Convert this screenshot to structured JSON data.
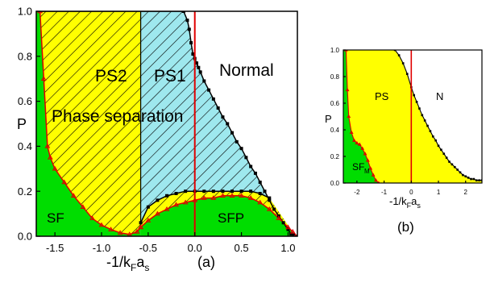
{
  "colors": {
    "green": "#00dd00",
    "yellow": "#ffff00",
    "cyan": "#9ee8ee",
    "red_line": "#e00000",
    "boundary": "#000000"
  },
  "chart_data": [
    {
      "panel": "a",
      "panel_label": "(a)",
      "type": "area",
      "xlabel": "-1/k_F a_s",
      "xlabel_main": "-1/k",
      "xlabel_sub_F": "F",
      "xlabel_mid": "a",
      "xlabel_sub_s": "s",
      "ylabel": "P",
      "xlim": [
        -1.7,
        1.1
      ],
      "ylim": [
        0.0,
        1.0
      ],
      "xticks": [
        "-1.5",
        "-1.0",
        "-0.5",
        "0.0",
        "0.5",
        "1.0"
      ],
      "xtick_values": [
        -1.5,
        -1.0,
        -0.5,
        0.0,
        0.5,
        1.0
      ],
      "yticks": [
        "0.0",
        "0.2",
        "0.4",
        "0.6",
        "0.8",
        "1.0"
      ],
      "ytick_values": [
        0.0,
        0.2,
        0.4,
        0.6,
        0.8,
        1.0
      ],
      "vertical_line_x": 0.0,
      "regions": [
        {
          "label": "PS2",
          "x": -1.25,
          "y": 0.73
        },
        {
          "label": "PS1",
          "x": -0.33,
          "y": 0.73
        },
        {
          "label": "Normal",
          "x": 0.58,
          "y": 0.75
        },
        {
          "label": "Phase separation",
          "x": -0.78,
          "y": 0.55
        },
        {
          "label": "SF",
          "x": -1.52,
          "y": 0.1
        },
        {
          "label": "SFP",
          "x": 0.45,
          "y": 0.1
        }
      ],
      "series": [
        {
          "role": "normal boundary",
          "x": [
            -0.12,
            -0.08,
            -0.06,
            -0.04,
            -0.02,
            0.0,
            0.02,
            0.04,
            0.06,
            0.1,
            0.15,
            0.2,
            0.25,
            0.3,
            0.35,
            0.4,
            0.45,
            0.5,
            0.55,
            0.6,
            0.65,
            0.7,
            0.75,
            0.8,
            0.85,
            0.9,
            0.95,
            1.0,
            1.03,
            1.06,
            1.08
          ],
          "y": [
            1.0,
            0.96,
            0.92,
            0.86,
            0.81,
            0.79,
            0.77,
            0.75,
            0.73,
            0.69,
            0.65,
            0.61,
            0.57,
            0.53,
            0.5,
            0.46,
            0.42,
            0.39,
            0.35,
            0.31,
            0.28,
            0.24,
            0.2,
            0.16,
            0.12,
            0.09,
            0.06,
            0.03,
            0.01,
            0.005,
            0.0
          ]
        },
        {
          "role": "PS1/PS2 boundary",
          "x": [
            -0.58,
            -0.58
          ],
          "y": [
            0.05,
            1.0
          ]
        },
        {
          "role": "SF boundary",
          "x": [
            -1.66,
            -1.62,
            -1.58,
            -1.55,
            -1.5,
            -1.4,
            -1.3,
            -1.2,
            -1.1,
            -1.0,
            -0.9,
            -0.8,
            -0.7,
            -0.62,
            -0.58
          ],
          "y": [
            1.0,
            0.7,
            0.4,
            0.35,
            0.3,
            0.24,
            0.18,
            0.13,
            0.08,
            0.05,
            0.03,
            0.015,
            0.008,
            0.02,
            0.04
          ]
        },
        {
          "role": "SFP upper boundary",
          "x": [
            -0.58,
            -0.5,
            -0.4,
            -0.3,
            -0.2,
            -0.1,
            0.0,
            0.1,
            0.2,
            0.3,
            0.4,
            0.5,
            0.6,
            0.7,
            0.8
          ],
          "y": [
            0.06,
            0.13,
            0.16,
            0.18,
            0.19,
            0.2,
            0.2,
            0.2,
            0.2,
            0.2,
            0.2,
            0.2,
            0.2,
            0.19,
            0.17
          ]
        },
        {
          "role": "SFP lower boundary",
          "x": [
            -0.58,
            -0.5,
            -0.4,
            -0.3,
            -0.2,
            -0.1,
            0.0,
            0.1,
            0.2,
            0.3,
            0.4,
            0.5,
            0.6,
            0.7,
            0.8,
            0.9,
            1.0,
            1.05,
            1.08
          ],
          "y": [
            0.04,
            0.07,
            0.1,
            0.12,
            0.14,
            0.15,
            0.16,
            0.17,
            0.17,
            0.18,
            0.18,
            0.18,
            0.17,
            0.15,
            0.12,
            0.08,
            0.04,
            0.02,
            0.0
          ]
        }
      ]
    },
    {
      "panel": "b",
      "panel_label": "(b)",
      "type": "area",
      "xlabel": "-1/k_F a_s",
      "xlabel_main": "-1/k",
      "xlabel_sub_F": "F",
      "xlabel_mid": "a",
      "xlabel_sub_s": "s",
      "ylabel": "P",
      "xlim": [
        -2.5,
        2.6
      ],
      "ylim": [
        0.0,
        1.0
      ],
      "xticks": [
        "-2",
        "-1",
        "0",
        "1",
        "2"
      ],
      "xtick_values": [
        -2,
        -1,
        0,
        1,
        2
      ],
      "yticks": [
        "0.0",
        "0.2",
        "0.4",
        "0.6",
        "0.8",
        "1.0"
      ],
      "ytick_values": [
        0.0,
        0.2,
        0.4,
        0.6,
        0.8,
        1.0
      ],
      "vertical_line_x": 0.0,
      "regions": [
        {
          "label": "PS",
          "x": -0.9,
          "y": 0.72
        },
        {
          "label": "N",
          "x": 1.1,
          "y": 0.72
        },
        {
          "label": "SF",
          "x": -2.15,
          "y": 0.18
        },
        {
          "label": "M",
          "x": -1.85,
          "y": 0.13
        }
      ],
      "series": [
        {
          "role": "normal boundary",
          "x": [
            -0.6,
            -0.45,
            -0.3,
            -0.15,
            0.0,
            0.1,
            0.2,
            0.3,
            0.4,
            0.5,
            0.6,
            0.7,
            0.8,
            0.9,
            1.0,
            1.1,
            1.2,
            1.3,
            1.4,
            1.5,
            1.6,
            1.7,
            1.8,
            1.9,
            2.0,
            2.1,
            2.2,
            2.3,
            2.4,
            2.5,
            2.6
          ],
          "y": [
            1.0,
            0.96,
            0.9,
            0.82,
            0.72,
            0.66,
            0.61,
            0.56,
            0.51,
            0.47,
            0.43,
            0.39,
            0.35,
            0.32,
            0.28,
            0.25,
            0.22,
            0.19,
            0.16,
            0.14,
            0.12,
            0.1,
            0.08,
            0.06,
            0.05,
            0.04,
            0.03,
            0.03,
            0.02,
            0.02,
            0.02
          ]
        },
        {
          "role": "SF boundary",
          "x": [
            -2.4,
            -2.35,
            -2.3,
            -2.2,
            -2.1,
            -2.0,
            -1.9,
            -1.8,
            -1.7,
            -1.6,
            -1.5,
            -1.4,
            -1.3,
            -1.2
          ],
          "y": [
            1.0,
            0.7,
            0.5,
            0.38,
            0.32,
            0.3,
            0.29,
            0.26,
            0.22,
            0.17,
            0.11,
            0.06,
            0.02,
            0.0
          ]
        }
      ]
    }
  ]
}
